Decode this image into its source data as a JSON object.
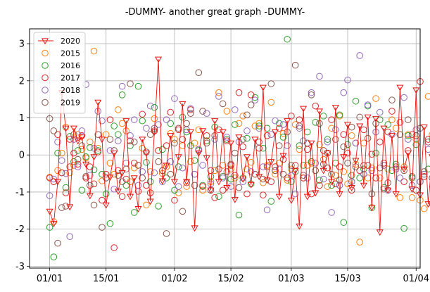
{
  "chart_data": {
    "type": "scatter",
    "title": "-DUMMY- another great graph -DUMMY-",
    "xlabel": "",
    "ylabel": "",
    "grid": true,
    "legend_position": "top-left",
    "x_range": [
      "2019-12-27",
      "2020-04-02"
    ],
    "ylim": [
      -3.05,
      3.4
    ],
    "y_ticks": [
      -3,
      -2,
      -1,
      0,
      1,
      2,
      3
    ],
    "x_ticks": [
      {
        "date": "2020-01-01",
        "label": "01/01"
      },
      {
        "date": "2020-01-15",
        "label": "15/01"
      },
      {
        "date": "2020-02-01",
        "label": "01/02"
      },
      {
        "date": "2020-02-15",
        "label": "15/02"
      },
      {
        "date": "2020-03-01",
        "label": "01/03"
      },
      {
        "date": "2020-03-15",
        "label": "15/03"
      },
      {
        "date": "2020-04-01",
        "label": "01/04"
      }
    ],
    "start_date": "2020-01-01",
    "series": [
      {
        "name": "2020",
        "color": "#e8150f",
        "marker": "triangle-down",
        "line": true,
        "values": [
          -1.52,
          -1.85,
          -0.72,
          1.68,
          0.72,
          -1.4,
          0.72,
          0.38,
          0.48,
          -0.25,
          -1.1,
          -0.05,
          1.42,
          0.42,
          -1.35,
          -0.6,
          0.05,
          -0.98,
          -0.48,
          0.92,
          -1.12,
          -0.62,
          -1.45,
          0.42,
          0.05,
          -1.25,
          0.62,
          2.58,
          -0.7,
          -0.28,
          0.52,
          -0.72,
          -0.05,
          1.38,
          -0.72,
          0.62,
          -1.97,
          0.05,
          0.65,
          -0.08,
          -0.95,
          0.92,
          -0.72,
          0.62,
          -0.88,
          0.32,
          -1.2,
          0.48,
          -0.65,
          -0.05,
          -0.8,
          0.42,
          -0.58,
          1.82,
          -0.68,
          -0.18,
          0.62,
          -1.12,
          -0.02,
          0.92,
          -1.22,
          -0.42,
          -1.92,
          1.25,
          -1.12,
          0.32,
          -1.02,
          1.18,
          -0.42,
          0.05,
          -0.72,
          1.28,
          -1.05,
          -0.05,
          0.82,
          -0.88,
          -0.15,
          0.78,
          -0.82,
          1.02,
          -1.42,
          0.98,
          -2.08,
          0.72,
          -0.95,
          0.52,
          -1.05,
          1.82,
          -0.38,
          0.05,
          -0.92,
          1.75,
          -1.08,
          0.75,
          -1.32,
          -0.05,
          -0.72,
          0.32,
          -0.62,
          0.32,
          -0.72
        ]
      },
      {
        "name": "2015",
        "color": "#ff7f0e",
        "marker": "circle",
        "line": false,
        "values": [
          -0.6,
          -1.8,
          -0.42,
          0.05,
          0.75,
          -0.48,
          -0.28,
          0.55,
          0.15,
          -0.08,
          0.35,
          2.8,
          0.18,
          -0.7,
          0.55,
          -0.22,
          -0.52,
          1.22,
          0.85,
          0.65,
          -0.72,
          -0.35,
          -0.28,
          0.18,
          -1.35,
          -0.45,
          0.98,
          0.12,
          -0.5,
          -0.32,
          0.58,
          0.42,
          -1.02,
          0.25,
          -0.85,
          -0.18,
          0.32,
          0.68,
          -0.95,
          0.38,
          -0.72,
          -0.42,
          1.68,
          -0.28,
          1.18,
          -0.38,
          -0.62,
          0.85,
          1.05,
          -0.38,
          -0.2,
          0.78,
          0.85,
          -0.75,
          -0.28,
          1.42,
          -0.52,
          -0.22,
          0.58,
          -0.68,
          -0.38,
          0.82,
          0.15,
          -0.62,
          -0.28,
          -0.22,
          -0.42,
          0.28,
          -0.12,
          -0.85,
          0.72,
          -0.55,
          1.05,
          -0.45,
          -0.78,
          0.52,
          -0.25,
          -2.35,
          0.32,
          -0.62,
          -0.35,
          1.52,
          -0.62,
          -0.28,
          -0.38,
          0.95,
          0.72,
          -1.15,
          -0.32,
          0.55,
          -1.15,
          0.42,
          -1.22,
          -1.45,
          1.58,
          0.55,
          -0.72,
          -0.52,
          -0.2,
          -0.3,
          -0.42
        ]
      },
      {
        "name": "2016",
        "color": "#2ca02c",
        "marker": "circle",
        "line": false,
        "values": [
          -1.95,
          -2.75,
          0.05,
          -0.48,
          -0.88,
          0.5,
          -0.18,
          0.12,
          -0.95,
          -0.05,
          0.2,
          -0.4,
          0.12,
          -0.52,
          -1.05,
          -1.85,
          0.78,
          0.55,
          1.62,
          -0.82,
          0.25,
          -1.55,
          1.85,
          0.92,
          -0.2,
          -0.72,
          1.28,
          -1.38,
          0.15,
          -0.62,
          0.85,
          -0.95,
          -0.32,
          1.02,
          0.62,
          0.25,
          -0.15,
          0.12,
          -0.82,
          0.38,
          -0.58,
          0.75,
          -1.12,
          -0.58,
          0.42,
          -0.65,
          0.82,
          -1.62,
          -0.62,
          0.45,
          -0.78,
          1.55,
          0.78,
          0.18,
          0.72,
          -1.25,
          -0.42,
          0.85,
          0.48,
          3.12,
          -0.72,
          -0.45,
          0.25,
          -0.28,
          0.62,
          -0.18,
          0.88,
          -0.68,
          1.05,
          0.42,
          -0.82,
          -0.22,
          1.08,
          -1.82,
          0.28,
          -0.55,
          1.45,
          -0.62,
          -0.38,
          1.32,
          -1.42,
          0.05,
          0.95,
          -0.88,
          0.82,
          -0.42,
          -0.25,
          0.55,
          -1.98,
          0.52,
          -0.62,
          0.28,
          -0.72,
          -0.52,
          -0.38,
          0.42,
          -0.85,
          0.22,
          -1.45,
          0.05,
          0.28
        ]
      },
      {
        "name": "2017",
        "color": "#d62728",
        "marker": "circle",
        "line": false,
        "values": [
          -0.62,
          -0.72,
          0.55,
          -0.48,
          -1.02,
          0.42,
          0.05,
          -0.25,
          0.52,
          -0.62,
          -0.32,
          -0.78,
          0.08,
          -1.22,
          -0.52,
          0.95,
          -2.5,
          -0.42,
          -1.12,
          -0.65,
          0.38,
          -0.22,
          -0.98,
          1.1,
          -0.82,
          -1.02,
          0.65,
          0.12,
          -0.42,
          0.25,
          1.15,
          -1.22,
          0.68,
          0.42,
          -0.75,
          1.22,
          -0.52,
          0.15,
          -0.85,
          0.52,
          -0.42,
          -1.15,
          0.68,
          -0.95,
          0.38,
          -0.28,
          -0.55,
          1.68,
          0.22,
          -1.05,
          1.62,
          -0.52,
          0.18,
          -1.08,
          0.52,
          -0.72,
          -0.32,
          0.72,
          -0.12,
          -0.62,
          1.05,
          -0.28,
          0.95,
          -0.62,
          0.15,
          -1.05,
          1.32,
          -0.82,
          0.12,
          -0.35,
          0.95,
          -0.78,
          -0.32,
          0.55,
          0.05,
          -0.95,
          0.32,
          -0.42,
          0.68,
          -0.28,
          0.02,
          -0.62,
          0.35,
          -0.22,
          0.62,
          1.18,
          -0.38,
          0.88,
          -0.72,
          0.12,
          0.55,
          -0.95,
          1.98,
          -0.58,
          0.42,
          -1.32,
          0.22,
          -0.42,
          0.28,
          0.18,
          -0.68
        ]
      },
      {
        "name": "2018",
        "color": "#9467bd",
        "marker": "circle",
        "line": false,
        "values": [
          -1.1,
          -0.65,
          0.35,
          -0.15,
          -0.5,
          -2.2,
          0.42,
          -0.32,
          0.65,
          1.9,
          -0.55,
          0.18,
          1.18,
          0.92,
          -0.62,
          0.12,
          -0.92,
          0.38,
          1.85,
          -0.22,
          0.52,
          0.95,
          -0.82,
          -0.45,
          0.72,
          1.32,
          -0.48,
          0.82,
          -0.72,
          0.95,
          -0.18,
          1.52,
          -0.85,
          -0.35,
          0.68,
          1.25,
          -0.52,
          0.15,
          -0.28,
          1.12,
          -0.78,
          0.42,
          1.58,
          -0.62,
          0.48,
          -0.85,
          1.22,
          0.35,
          -0.72,
          0.65,
          -0.45,
          1.48,
          0.72,
          -0.32,
          -1.48,
          0.55,
          0.92,
          -0.38,
          0.82,
          0.25,
          -0.55,
          -1.05,
          0.72,
          0.38,
          -0.62,
          1.68,
          -0.22,
          2.12,
          -0.65,
          0.35,
          -1.55,
          0.68,
          -0.82,
          1.68,
          2.02,
          -0.72,
          0.32,
          2.68,
          -0.52,
          1.35,
          -0.42,
          0.62,
          1.15,
          -0.28,
          -0.95,
          0.55,
          -0.38,
          -0.62,
          1.55,
          0.42,
          -0.82,
          0.68,
          -0.72,
          -0.52,
          0.15,
          -0.62,
          0.42,
          -1.42,
          0.52,
          -0.32,
          0.52
        ]
      },
      {
        "name": "2019",
        "color": "#8c564b",
        "marker": "circle",
        "line": false,
        "values": [
          0.98,
          0.65,
          -2.38,
          -1.42,
          -1.38,
          -0.32,
          0.55,
          -0.12,
          0.25,
          -0.58,
          -0.82,
          -1.35,
          0.55,
          -1.95,
          -0.62,
          0.42,
          0.12,
          -0.55,
          -0.72,
          -0.38,
          1.92,
          0.35,
          -0.28,
          -0.62,
          0.08,
          0.55,
          0.72,
          -0.18,
          -0.42,
          -2.12,
          -0.52,
          0.32,
          0.72,
          -1.52,
          0.85,
          1.12,
          -0.82,
          2.22,
          1.18,
          0.32,
          -0.95,
          0.52,
          -0.38,
          1.38,
          -0.45,
          -0.25,
          0.05,
          -0.88,
          0.42,
          1.08,
          1.35,
          -0.52,
          0.35,
          -0.65,
          -0.32,
          1.92,
          -0.42,
          0.25,
          -0.52,
          0.62,
          -0.28,
          2.42,
          0.78,
          -0.55,
          0.32,
          1.62,
          -0.42,
          0.85,
          -0.25,
          0.05,
          -0.52,
          0.42,
          -0.68,
          0.22,
          -0.22,
          0.75,
          -0.32,
          1.02,
          -0.28,
          0.45,
          -1.05,
          0.85,
          -0.35,
          -0.92,
          -0.75,
          1.48,
          -0.32,
          0.55,
          -0.42,
          0.95,
          -0.58,
          0.52,
          0.72,
          -0.45,
          0.35,
          -0.62,
          1.15,
          0.62,
          -1.45,
          0.35,
          -0.55
        ]
      }
    ]
  }
}
